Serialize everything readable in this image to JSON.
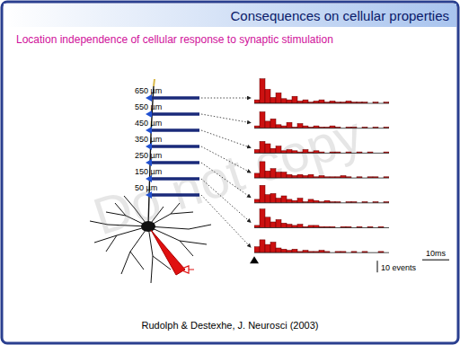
{
  "slide": {
    "title": "Consequences on cellular properties",
    "subtitle": "Location independence of cellular response to synaptic stimulation",
    "citation": "Rudolph & Destexhe, J. Neurosci (2003)",
    "watermark": "Do not copy",
    "scale_bars": {
      "time": {
        "value": 10,
        "label": "10ms"
      },
      "count": {
        "value": 10,
        "label": "10 events"
      }
    }
  },
  "chart_data": [
    {
      "type": "histogram",
      "title": "650 µm",
      "bins": [
        0,
        2,
        4,
        6,
        8,
        10,
        12,
        14,
        16,
        18,
        20,
        22,
        24,
        26,
        28,
        30,
        32,
        34,
        36,
        38,
        40,
        42,
        44,
        46,
        48,
        50
      ],
      "values": [
        3,
        21,
        12,
        5,
        9,
        4,
        3,
        6,
        2,
        3,
        1,
        2,
        3,
        1,
        2,
        1,
        1,
        2,
        1,
        1,
        1,
        0,
        1,
        0,
        1
      ],
      "xlim": [
        0,
        50
      ],
      "ylim": [
        0,
        22
      ],
      "xticks": [],
      "yticks": [],
      "tick_labels": false,
      "color": "#cc1111"
    },
    {
      "type": "histogram",
      "title": "550 µm",
      "bins": [
        0,
        2,
        4,
        6,
        8,
        10,
        12,
        14,
        16,
        18,
        20,
        22,
        24,
        26,
        28,
        30,
        32,
        34,
        36,
        38,
        40,
        42,
        44,
        46,
        48,
        50
      ],
      "values": [
        2,
        14,
        6,
        8,
        3,
        2,
        5,
        1,
        4,
        2,
        1,
        2,
        1,
        1,
        2,
        1,
        0,
        1,
        1,
        0,
        1,
        0,
        1,
        0,
        1
      ],
      "xlim": [
        0,
        50
      ],
      "ylim": [
        0,
        22
      ],
      "xticks": [],
      "yticks": [],
      "tick_labels": false,
      "color": "#cc1111"
    },
    {
      "type": "histogram",
      "title": "450 µm",
      "bins": [
        0,
        2,
        4,
        6,
        8,
        10,
        12,
        14,
        16,
        18,
        20,
        22,
        24,
        26,
        28,
        30,
        32,
        34,
        36,
        38,
        40,
        42,
        44,
        46,
        48,
        50
      ],
      "values": [
        3,
        10,
        8,
        4,
        6,
        2,
        3,
        2,
        1,
        3,
        1,
        2,
        1,
        0,
        1,
        1,
        0,
        1,
        0,
        1,
        0,
        1,
        0,
        0,
        1
      ],
      "xlim": [
        0,
        50
      ],
      "ylim": [
        0,
        22
      ],
      "xticks": [],
      "yticks": [],
      "tick_labels": false,
      "color": "#cc1111"
    },
    {
      "type": "histogram",
      "title": "350 µm",
      "bins": [
        0,
        2,
        4,
        6,
        8,
        10,
        12,
        14,
        16,
        18,
        20,
        22,
        24,
        26,
        28,
        30,
        32,
        34,
        36,
        38,
        40,
        42,
        44,
        46,
        48,
        50
      ],
      "values": [
        4,
        14,
        6,
        8,
        5,
        5,
        3,
        2,
        3,
        2,
        3,
        1,
        2,
        1,
        1,
        1,
        2,
        1,
        0,
        1,
        0,
        1,
        1,
        0,
        1
      ],
      "xlim": [
        0,
        50
      ],
      "ylim": [
        0,
        22
      ],
      "xticks": [],
      "yticks": [],
      "tick_labels": false,
      "color": "#cc1111"
    },
    {
      "type": "histogram",
      "title": "250 µm",
      "bins": [
        0,
        2,
        4,
        6,
        8,
        10,
        12,
        14,
        16,
        18,
        20,
        22,
        24,
        26,
        28,
        30,
        32,
        34,
        36,
        38,
        40,
        42,
        44,
        46,
        48,
        50
      ],
      "values": [
        3,
        15,
        7,
        8,
        4,
        6,
        3,
        2,
        4,
        1,
        3,
        2,
        1,
        2,
        1,
        1,
        0,
        1,
        1,
        0,
        1,
        0,
        1,
        0,
        1
      ],
      "xlim": [
        0,
        50
      ],
      "ylim": [
        0,
        22
      ],
      "xticks": [],
      "yticks": [],
      "tick_labels": false,
      "color": "#cc1111"
    },
    {
      "type": "histogram",
      "title": "150 µm",
      "bins": [
        0,
        2,
        4,
        6,
        8,
        10,
        12,
        14,
        16,
        18,
        20,
        22,
        24,
        26,
        28,
        30,
        32,
        34,
        36,
        38,
        40,
        42,
        44,
        46,
        48,
        50
      ],
      "values": [
        2,
        16,
        9,
        5,
        7,
        4,
        3,
        2,
        3,
        1,
        2,
        2,
        1,
        1,
        1,
        0,
        1,
        1,
        0,
        1,
        0,
        1,
        0,
        1,
        0
      ],
      "xlim": [
        0,
        50
      ],
      "ylim": [
        0,
        22
      ],
      "xticks": [],
      "yticks": [],
      "tick_labels": false,
      "color": "#cc1111"
    },
    {
      "type": "histogram",
      "title": "50 µm",
      "bins": [
        0,
        2,
        4,
        6,
        8,
        10,
        12,
        14,
        16,
        18,
        20,
        22,
        24,
        26,
        28,
        30,
        32,
        34,
        36,
        38,
        40,
        42,
        44,
        46,
        48,
        50
      ],
      "values": [
        5,
        11,
        7,
        9,
        4,
        3,
        2,
        3,
        1,
        2,
        1,
        1,
        2,
        1,
        0,
        1,
        1,
        0,
        1,
        0,
        1,
        0,
        0,
        1,
        0
      ],
      "xlim": [
        0,
        50
      ],
      "ylim": [
        0,
        22
      ],
      "xticks": [],
      "yticks": [],
      "tick_labels": false,
      "color": "#cc1111"
    }
  ]
}
